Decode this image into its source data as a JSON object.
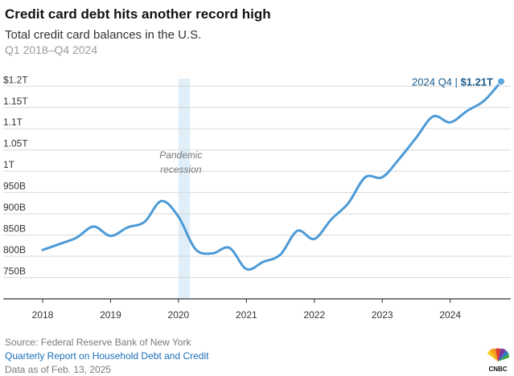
{
  "header": {
    "title": "Credit card debt hits another record high",
    "subtitle": "Total credit card balances in the U.S.",
    "date_range": "Q1 2018–Q4 2024"
  },
  "footer": {
    "source": "Source: Federal Reserve Bank of New York",
    "report": "Quarterly Report on Household Debt and Credit",
    "as_of": "Data as of Feb. 13, 2025",
    "logo_text": "CNBC"
  },
  "colors": {
    "line": "#4d9ad6",
    "shade": "#dfeef8",
    "grid": "#d9d9d9",
    "axis": "#333333",
    "tick_text": "#333333",
    "annotation_text": "#1a5a8a",
    "recession_text": "#777777",
    "link": "#1d6fb8"
  },
  "chart_data": {
    "type": "line",
    "title": "Credit card debt hits another record high",
    "subtitle": "Total credit card balances in the U.S.",
    "xlabel": "",
    "ylabel": "",
    "x_unit": "year",
    "x_range": [
      2018,
      2024.75
    ],
    "ylim": [
      700,
      1210
    ],
    "y_unit": "billions of dollars",
    "grid": true,
    "x_ticks": [
      {
        "value": 2018,
        "label": "2018"
      },
      {
        "value": 2019,
        "label": "2019"
      },
      {
        "value": 2020,
        "label": "2020"
      },
      {
        "value": 2021,
        "label": "2021"
      },
      {
        "value": 2022,
        "label": "2022"
      },
      {
        "value": 2023,
        "label": "2023"
      },
      {
        "value": 2024,
        "label": "2024"
      }
    ],
    "y_ticks": [
      {
        "value": 750,
        "label": "750B"
      },
      {
        "value": 800,
        "label": "800B"
      },
      {
        "value": 850,
        "label": "850B"
      },
      {
        "value": 900,
        "label": "900B"
      },
      {
        "value": 950,
        "label": "950B"
      },
      {
        "value": 1000,
        "label": "1T"
      },
      {
        "value": 1050,
        "label": "1.05T"
      },
      {
        "value": 1100,
        "label": "1.1T"
      },
      {
        "value": 1150,
        "label": "1.15T"
      },
      {
        "value": 1200,
        "label": "$1.2T"
      }
    ],
    "series": [
      {
        "x": [
          2018.0,
          2018.25,
          2018.5,
          2018.75,
          2019.0,
          2019.25,
          2019.5,
          2019.75,
          2020.0,
          2020.25,
          2020.5,
          2020.75,
          2021.0,
          2021.25,
          2021.5,
          2021.75,
          2022.0,
          2022.25,
          2022.5,
          2022.75,
          2023.0,
          2023.25,
          2023.5,
          2023.75,
          2024.0,
          2024.25,
          2024.5,
          2024.75
        ],
        "values": [
          815,
          829,
          844,
          870,
          848,
          868,
          881,
          930,
          893,
          817,
          807,
          820,
          770,
          787,
          804,
          860,
          841,
          887,
          925,
          986,
          986,
          1029,
          1079,
          1129,
          1115,
          1142,
          1166,
          1211
        ]
      }
    ],
    "shaded_regions": [
      {
        "label_line1": "Pandemic",
        "label_line2": "recession",
        "x_start": 2020.0,
        "x_end": 2020.17
      }
    ],
    "annotations": [
      {
        "label": "2024 Q4",
        "value_label": "$1.21T",
        "x": 2024.75,
        "y": 1211
      }
    ]
  }
}
